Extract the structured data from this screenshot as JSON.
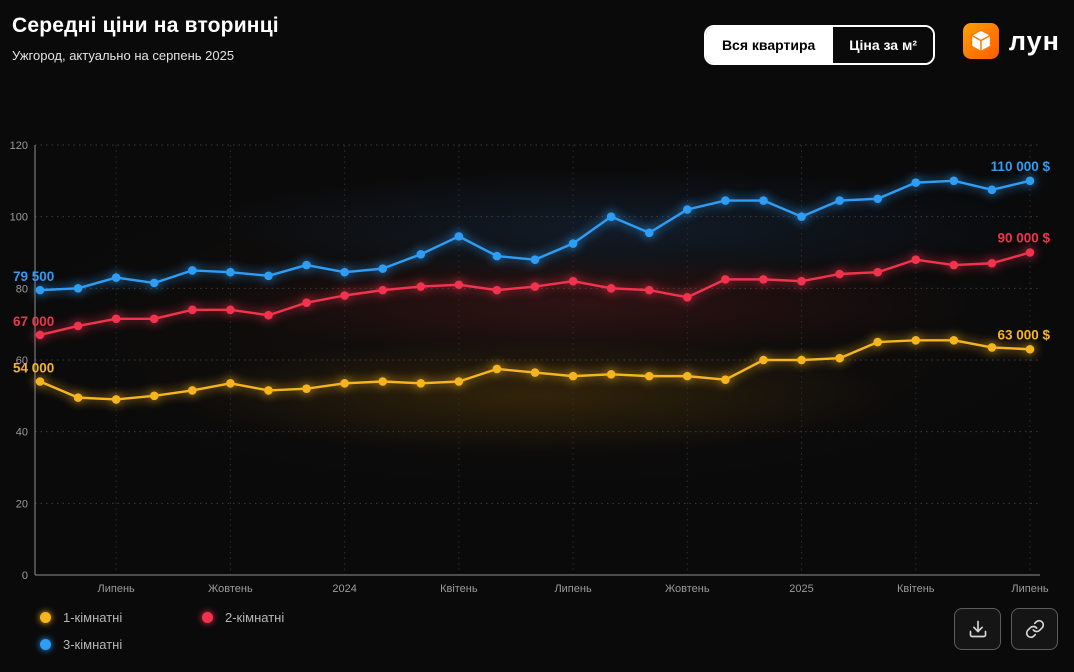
{
  "header": {
    "title": "Середні ціни на вторинці",
    "subtitle": "Ужгород, актуально на серпень 2025",
    "toggle": {
      "options": [
        {
          "label": "Вся квартира",
          "active": true
        },
        {
          "label": "Ціна за м²",
          "active": false
        }
      ]
    },
    "logo_text": "лун",
    "logo_icon": "lun-cube-icon",
    "logo_color": "#ff6b00"
  },
  "chart_data": {
    "type": "line",
    "title": "Середні ціни на вторинці",
    "xlabel": "",
    "ylabel": "",
    "ylim": [
      0,
      120
    ],
    "y_ticks": [
      0,
      20,
      40,
      60,
      80,
      100,
      120
    ],
    "grid": "dotted",
    "legend_position": "bottom-left",
    "x_tick_labels": [
      "Липень",
      "Жовтень",
      "2024",
      "Квітень",
      "Липень",
      "Жовтень",
      "2025",
      "Квітень",
      "Липень"
    ],
    "x_tick_positions": [
      2,
      5,
      8,
      11,
      14,
      17,
      20,
      23,
      26
    ],
    "units": "thousand USD",
    "series": [
      {
        "name": "1-кімнатні",
        "color": "#f6b51e",
        "start_label": "54 000",
        "end_label": "63 000 $",
        "values": [
          54,
          49.5,
          49,
          50,
          51.5,
          53.5,
          51.5,
          52,
          53.5,
          54,
          53.5,
          54,
          57.5,
          56.5,
          55.5,
          56,
          55.5,
          55.5,
          54.5,
          60,
          60,
          60.5,
          65,
          65.5,
          65.5,
          63.5,
          63
        ]
      },
      {
        "name": "2-кімнатні",
        "color": "#f2334d",
        "start_label": "67 000",
        "end_label": "90 000 $",
        "values": [
          67,
          69.5,
          71.5,
          71.5,
          74,
          74,
          72.5,
          76,
          78,
          79.5,
          80.5,
          81,
          79.5,
          80.5,
          82,
          80,
          79.5,
          77.5,
          82.5,
          82.5,
          82,
          84,
          84.5,
          88,
          86.5,
          87,
          90
        ]
      },
      {
        "name": "3-кімнатні",
        "color": "#2e9df5",
        "start_label": "79 500",
        "end_label": "110 000 $",
        "values": [
          79.5,
          80,
          83,
          81.5,
          85,
          84.5,
          83.5,
          86.5,
          84.5,
          85.5,
          89.5,
          94.5,
          89,
          88,
          92.5,
          100,
          95.5,
          102,
          104.5,
          104.5,
          100,
          104.5,
          105,
          109.5,
          110,
          107.5,
          110
        ]
      }
    ]
  },
  "legend": {
    "items": [
      "1-кімнатні",
      "2-кімнатні",
      "3-кімнатні"
    ]
  },
  "actions": {
    "download": "download-icon",
    "share": "link-icon"
  }
}
